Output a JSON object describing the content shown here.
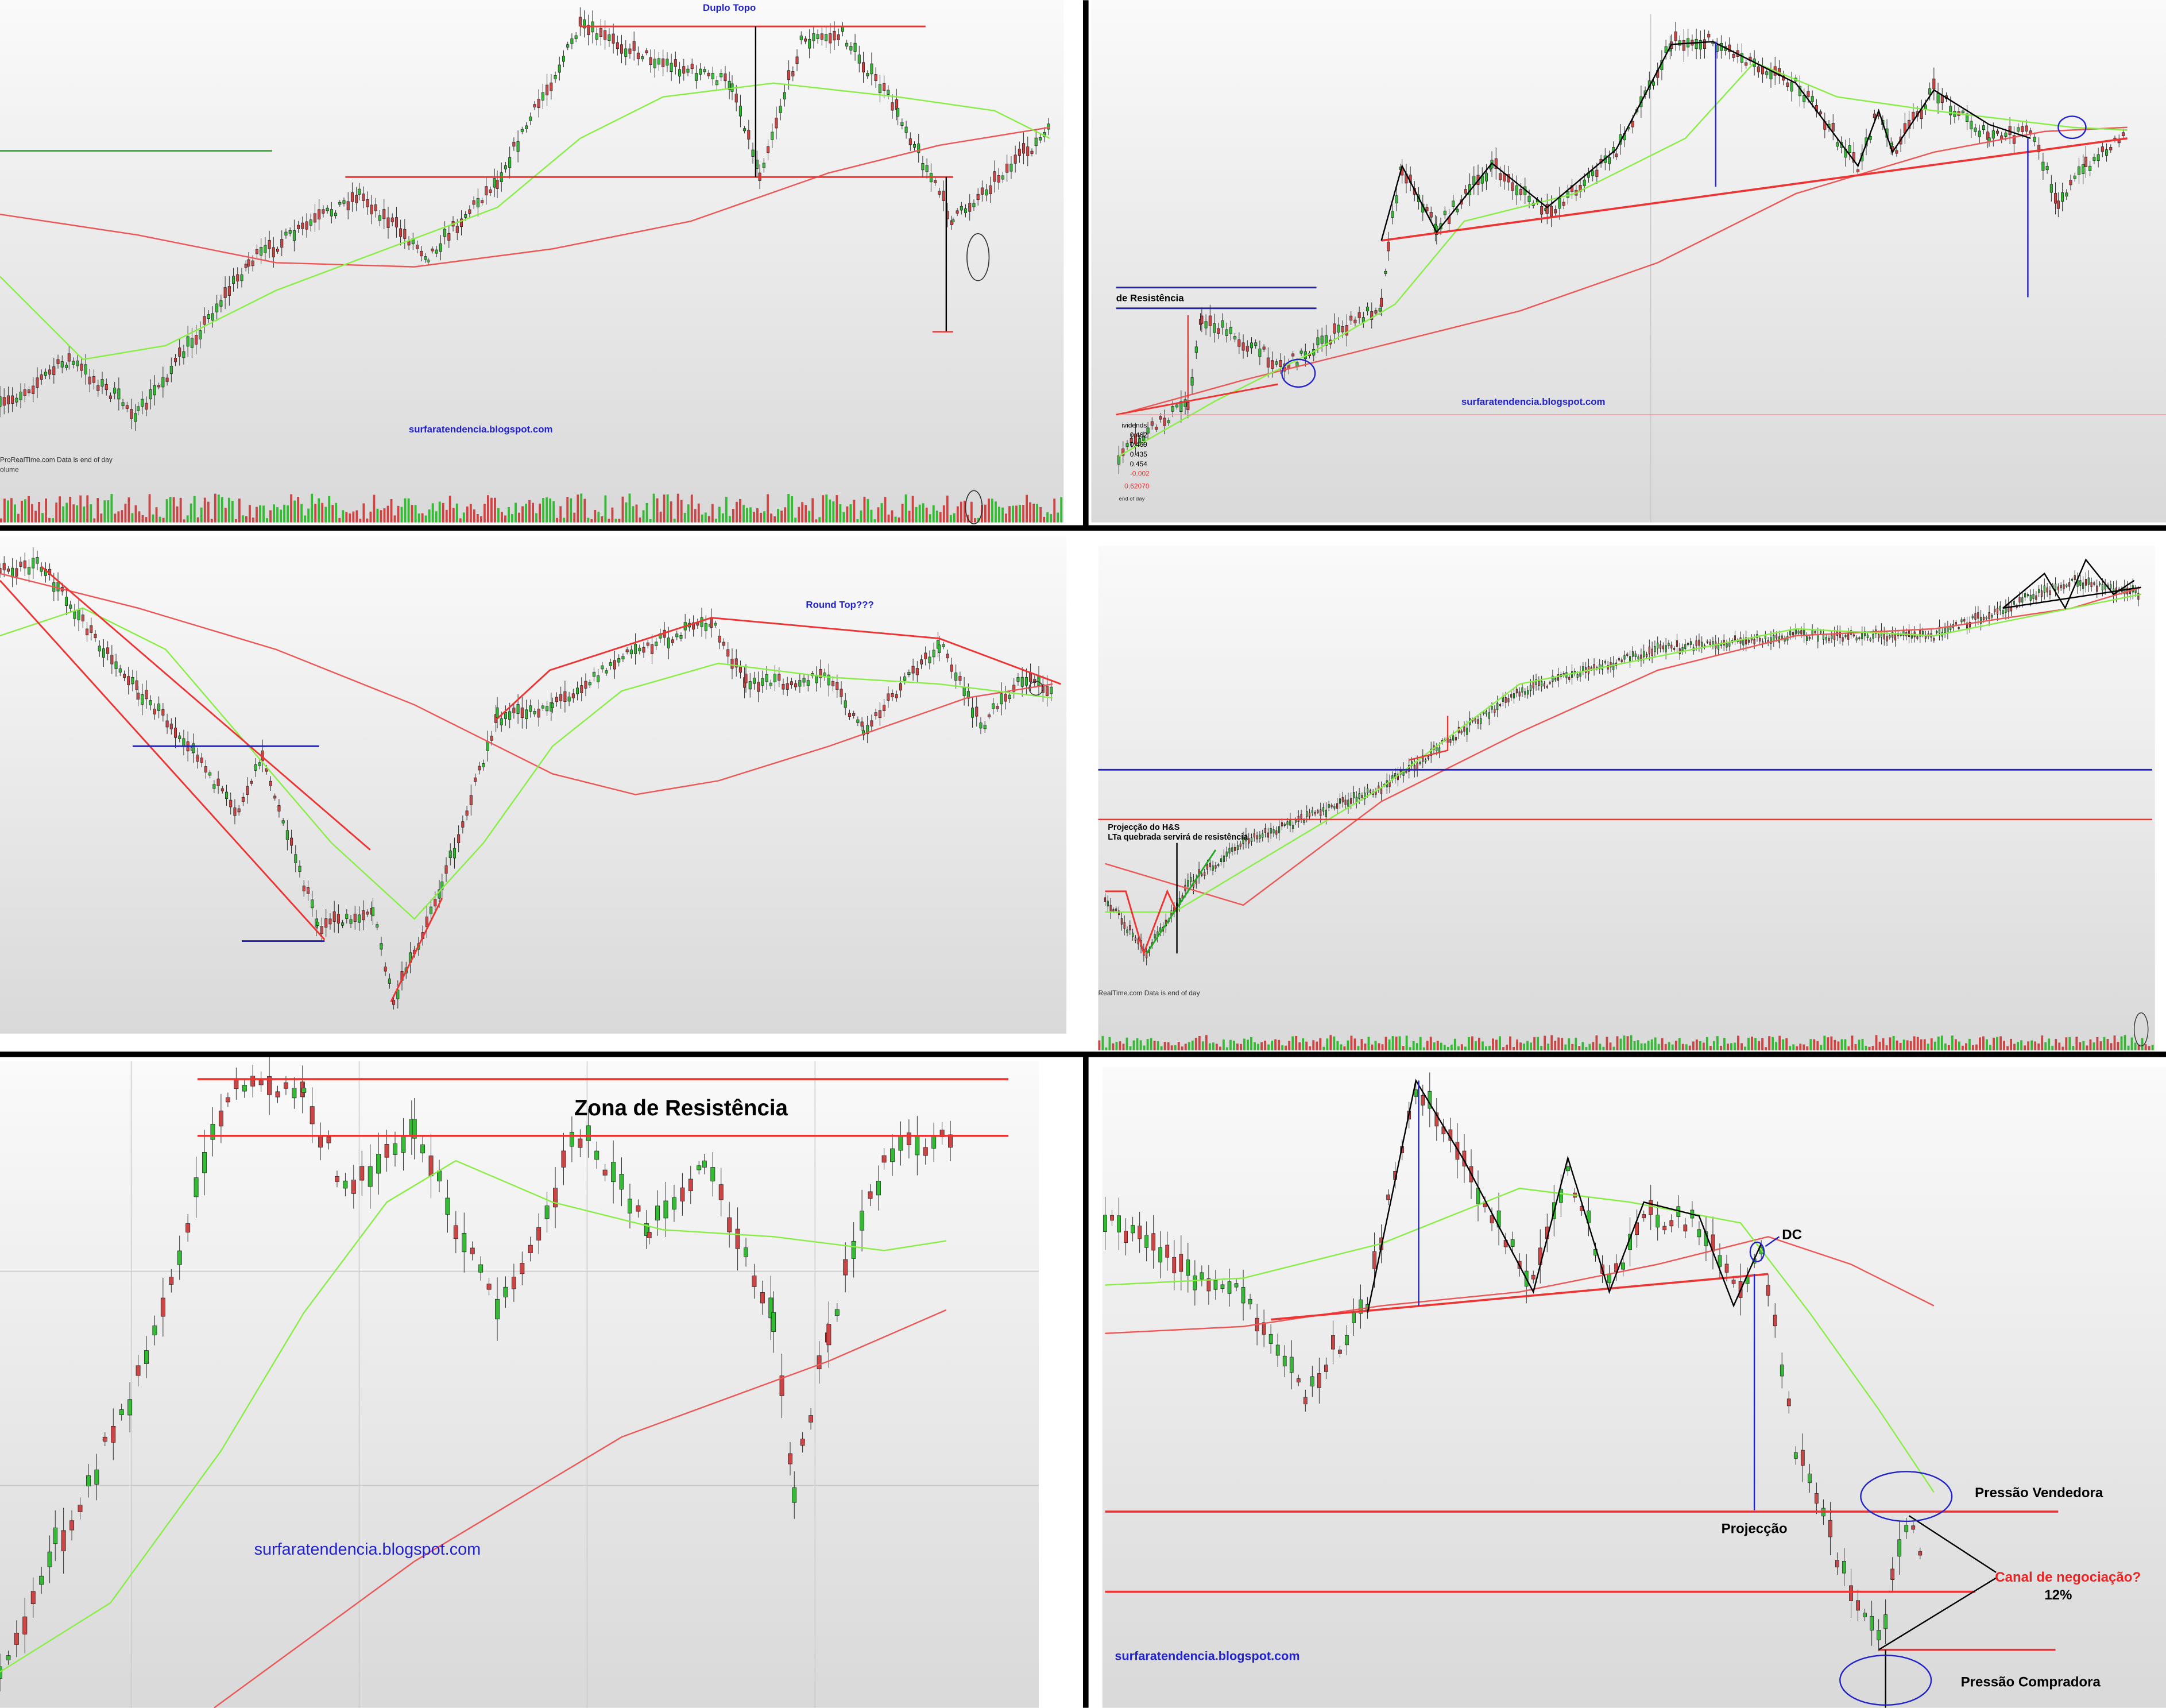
{
  "panels": [
    {
      "annotations": [
        "Duplo Topo",
        "surfaratendencia.blogspot.com",
        "ProRealTime.com  Data is end of day",
        "olume"
      ]
    },
    {
      "annotations": [
        "de Resistência",
        "surfaratendencia.blogspot.com",
        "ividends",
        "0.462",
        "0.469",
        "0.435",
        "0.454",
        "-0.002",
        "0.62070",
        "end of day"
      ]
    },
    {
      "annotations": [
        "Round Top???"
      ]
    },
    {
      "annotations": [
        "Projecção do H&S",
        "LTa quebrada servirá de resistência",
        "RealTime.com  Data is end of day"
      ]
    },
    {
      "annotations": [
        "Zona de Resistência",
        "surfaratendencia.blogspot.com"
      ]
    },
    {
      "annotations": [
        "DC",
        "Pressão Vendedora",
        "Projecção",
        "Canal de negociação?",
        "12%",
        "surfaratendencia.blogspot.com",
        "Pressão Compradora"
      ]
    }
  ]
}
